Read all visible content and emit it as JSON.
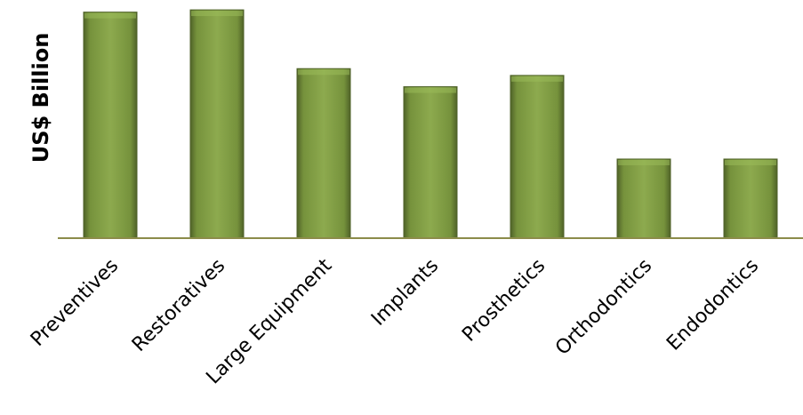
{
  "chart_data": {
    "type": "bar",
    "title": "",
    "xlabel": "",
    "ylabel": "US$ Billion",
    "categories": [
      "Preventives",
      "Restoratives",
      "Large Equipment",
      "Implants",
      "Prosthetics",
      "Orthodontics",
      "Endodontics"
    ],
    "values": [
      100,
      101,
      75,
      67,
      72,
      35,
      35
    ],
    "ylim": [
      0,
      103
    ],
    "grid": false,
    "legend": "none",
    "colors": {
      "bar_fill": "#76923C",
      "bar_light": "#9BBB59",
      "bar_dark": "#4F6228",
      "axis_line": "#8C8C4A"
    }
  }
}
